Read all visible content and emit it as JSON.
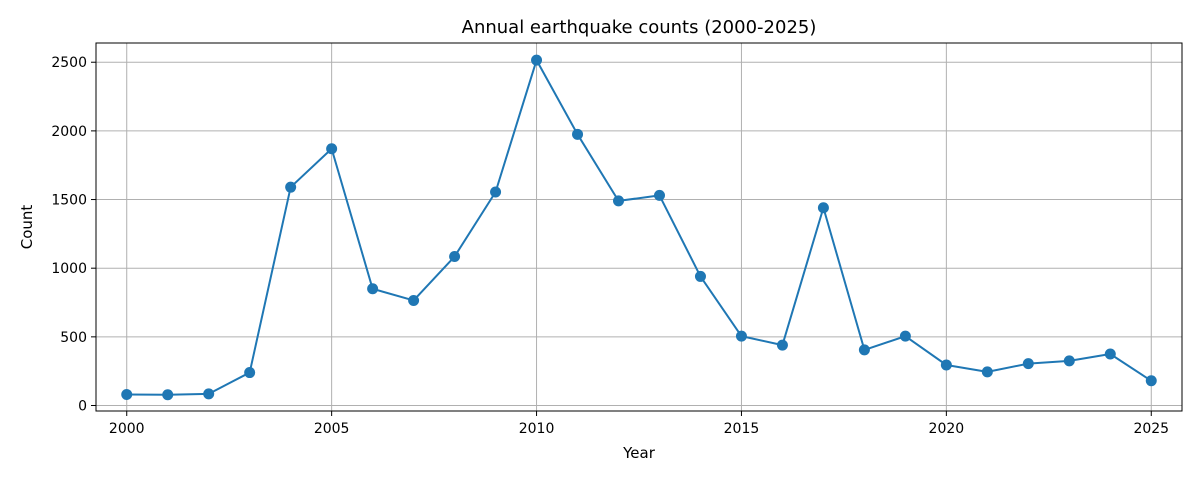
{
  "chart_data": {
    "type": "line",
    "title": "Annual earthquake counts (2000-2025)",
    "xlabel": "Year",
    "ylabel": "Count",
    "xlim": [
      1999.25,
      2025.75
    ],
    "ylim": [
      -40,
      2640
    ],
    "x_ticks": [
      2000,
      2005,
      2010,
      2015,
      2020,
      2025
    ],
    "y_ticks": [
      0,
      500,
      1000,
      1500,
      2000,
      2500
    ],
    "grid": true,
    "line_color": "#1f77b4",
    "grid_color": "#b0b0b0",
    "series": [
      {
        "x": [
          2000,
          2001,
          2002,
          2003,
          2004,
          2005,
          2006,
          2007,
          2008,
          2009,
          2010,
          2011,
          2012,
          2013,
          2014,
          2015,
          2016,
          2017,
          2018,
          2019,
          2020,
          2021,
          2022,
          2023,
          2024,
          2025
        ],
        "values": [
          80,
          78,
          85,
          240,
          1590,
          1870,
          850,
          765,
          1085,
          1555,
          2515,
          1975,
          1490,
          1530,
          940,
          505,
          440,
          1440,
          405,
          505,
          295,
          245,
          305,
          325,
          375,
          180
        ]
      }
    ]
  }
}
